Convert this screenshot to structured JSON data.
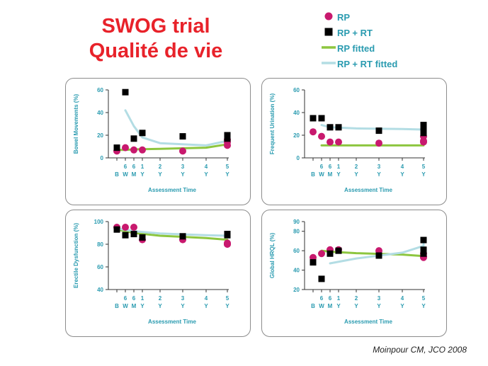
{
  "header": {
    "title_line1": "SWOG trial",
    "title_line2": "Qualité de vie"
  },
  "legend": [
    {
      "label": "RP",
      "marker": "circle",
      "color": "#c8196e"
    },
    {
      "label": "RP + RT",
      "marker": "square",
      "color": "#000000"
    },
    {
      "label": "RP fitted",
      "marker": "line",
      "color": "#8dc63f"
    },
    {
      "label": "RP + RT fitted",
      "marker": "line",
      "color": "#b3dde4"
    }
  ],
  "citation": "Moinpour CM, JCO 2008",
  "chart_data": [
    {
      "type": "scatter",
      "ylabel": "Bowel Movements (%)",
      "xlabel": "Assessment   Time",
      "ylim": [
        0,
        60
      ],
      "yticks": [
        0,
        20,
        40,
        60
      ],
      "x_tick_labels": [
        [
          "",
          "B"
        ],
        [
          "6",
          "W"
        ],
        [
          "6",
          "M"
        ],
        [
          "1",
          "Y"
        ],
        [
          "2",
          "Y"
        ],
        [
          "3",
          "Y"
        ],
        [
          "4",
          "Y"
        ],
        [
          "5",
          "Y"
        ]
      ],
      "series": [
        {
          "name": "RP",
          "x": [
            0,
            0.5,
            1,
            1.5,
            2.5,
            3.5,
            4,
            5
          ],
          "y": [
            6,
            9,
            7,
            7,
            6,
            14,
            16,
            11
          ]
        },
        {
          "name": "RP + RT",
          "x": [
            0,
            0.5,
            1,
            1.5,
            2.5,
            3.5,
            4,
            5
          ],
          "y": [
            9,
            58,
            17,
            22,
            19,
            20,
            17,
            20
          ]
        },
        {
          "name": "RP fitted",
          "x": [
            0,
            0.5,
            1,
            2,
            3,
            4,
            5
          ],
          "y": [
            7,
            7,
            7.5,
            8,
            9,
            12,
            16
          ]
        },
        {
          "name": "RP + RT fitted",
          "x": [
            0.5,
            1,
            1.5,
            2,
            3,
            4,
            5
          ],
          "y": [
            42,
            28,
            18,
            13,
            11,
            15,
            20
          ]
        }
      ]
    },
    {
      "type": "scatter",
      "ylabel": "Frequent Urination (%)",
      "xlabel": "Assessment   Time",
      "ylim": [
        0,
        60
      ],
      "yticks": [
        0,
        20,
        40,
        60
      ],
      "x_tick_labels": [
        [
          "",
          "B"
        ],
        [
          "6",
          "W"
        ],
        [
          "6",
          "M"
        ],
        [
          "1",
          "Y"
        ],
        [
          "2",
          "Y"
        ],
        [
          "3",
          "Y"
        ],
        [
          "4",
          "Y"
        ],
        [
          "5",
          "Y"
        ]
      ],
      "series": [
        {
          "name": "RP",
          "x": [
            0,
            0.5,
            1,
            1.5,
            2.5,
            3.5,
            4,
            5
          ],
          "y": [
            23,
            19,
            14,
            14,
            13,
            14,
            15,
            19
          ]
        },
        {
          "name": "RP + RT",
          "x": [
            0,
            0.5,
            1,
            1.5,
            2.5,
            3.5,
            4,
            5
          ],
          "y": [
            35,
            35,
            27,
            27,
            24,
            26,
            29,
            22
          ]
        },
        {
          "name": "RP fitted",
          "x": [
            0.5,
            5
          ],
          "y": [
            11,
            11
          ]
        },
        {
          "name": "RP + RT fitted",
          "x": [
            0.5,
            1,
            2,
            3,
            4,
            5
          ],
          "y": [
            29,
            27,
            26,
            25.5,
            25,
            24.5
          ]
        }
      ]
    },
    {
      "type": "scatter",
      "ylabel": "Erectile Dysfunction  (%)",
      "xlabel": "Assessment   Time",
      "ylim": [
        40,
        100
      ],
      "yticks": [
        40,
        60,
        80,
        100
      ],
      "x_tick_labels": [
        [
          "",
          "B"
        ],
        [
          "6",
          "W"
        ],
        [
          "6",
          "M"
        ],
        [
          "1",
          "Y"
        ],
        [
          "2",
          "Y"
        ],
        [
          "3",
          "Y"
        ],
        [
          "4",
          "Y"
        ],
        [
          "5",
          "Y"
        ]
      ],
      "series": [
        {
          "name": "RP",
          "x": [
            0,
            0.5,
            1,
            1.5,
            2.5,
            3.5,
            4,
            5
          ],
          "y": [
            95,
            95,
            95,
            84,
            84,
            80,
            81,
            80
          ]
        },
        {
          "name": "RP + RT",
          "x": [
            0,
            0.5,
            1,
            1.5,
            2.5,
            3.5,
            4,
            5
          ],
          "y": [
            93,
            88,
            89,
            86,
            87,
            89,
            89,
            88
          ]
        },
        {
          "name": "RP fitted",
          "x": [
            0,
            1,
            2,
            3,
            4,
            5
          ],
          "y": [
            93,
            90,
            87.5,
            85.5,
            84,
            82.5
          ]
        },
        {
          "name": "RP + RT fitted",
          "x": [
            0,
            1,
            2,
            3,
            4,
            5
          ],
          "y": [
            94,
            91.5,
            89.5,
            88,
            87.5,
            87
          ]
        }
      ]
    },
    {
      "type": "scatter",
      "ylabel": "Global HRQL (%)",
      "xlabel": "Assessment   Time",
      "ylim": [
        20,
        90
      ],
      "yticks": [
        20,
        40,
        60,
        80,
        90
      ],
      "x_tick_labels": [
        [
          "",
          "B"
        ],
        [
          "6",
          "W"
        ],
        [
          "6",
          "M"
        ],
        [
          "1",
          "Y"
        ],
        [
          "2",
          "Y"
        ],
        [
          "3",
          "Y"
        ],
        [
          "4",
          "Y"
        ],
        [
          "5",
          "Y"
        ]
      ],
      "series": [
        {
          "name": "RP",
          "x": [
            0,
            0.5,
            1,
            1.5,
            2.5,
            3.5,
            4,
            5
          ],
          "y": [
            53,
            57,
            61,
            61,
            60,
            54,
            57,
            53
          ]
        },
        {
          "name": "RP + RT",
          "x": [
            0,
            0.5,
            1,
            1.5,
            2.5,
            3.5,
            4,
            5
          ],
          "y": [
            48,
            31,
            57,
            60,
            55,
            61,
            57,
            71
          ]
        },
        {
          "name": "RP fitted",
          "x": [
            0.5,
            1,
            2,
            3,
            4,
            5
          ],
          "y": [
            60,
            59,
            57.5,
            56,
            54.5,
            52.5
          ]
        },
        {
          "name": "RP + RT fitted",
          "x": [
            1,
            2,
            3,
            4,
            5
          ],
          "y": [
            47,
            52,
            58,
            65,
            71
          ]
        }
      ]
    }
  ]
}
